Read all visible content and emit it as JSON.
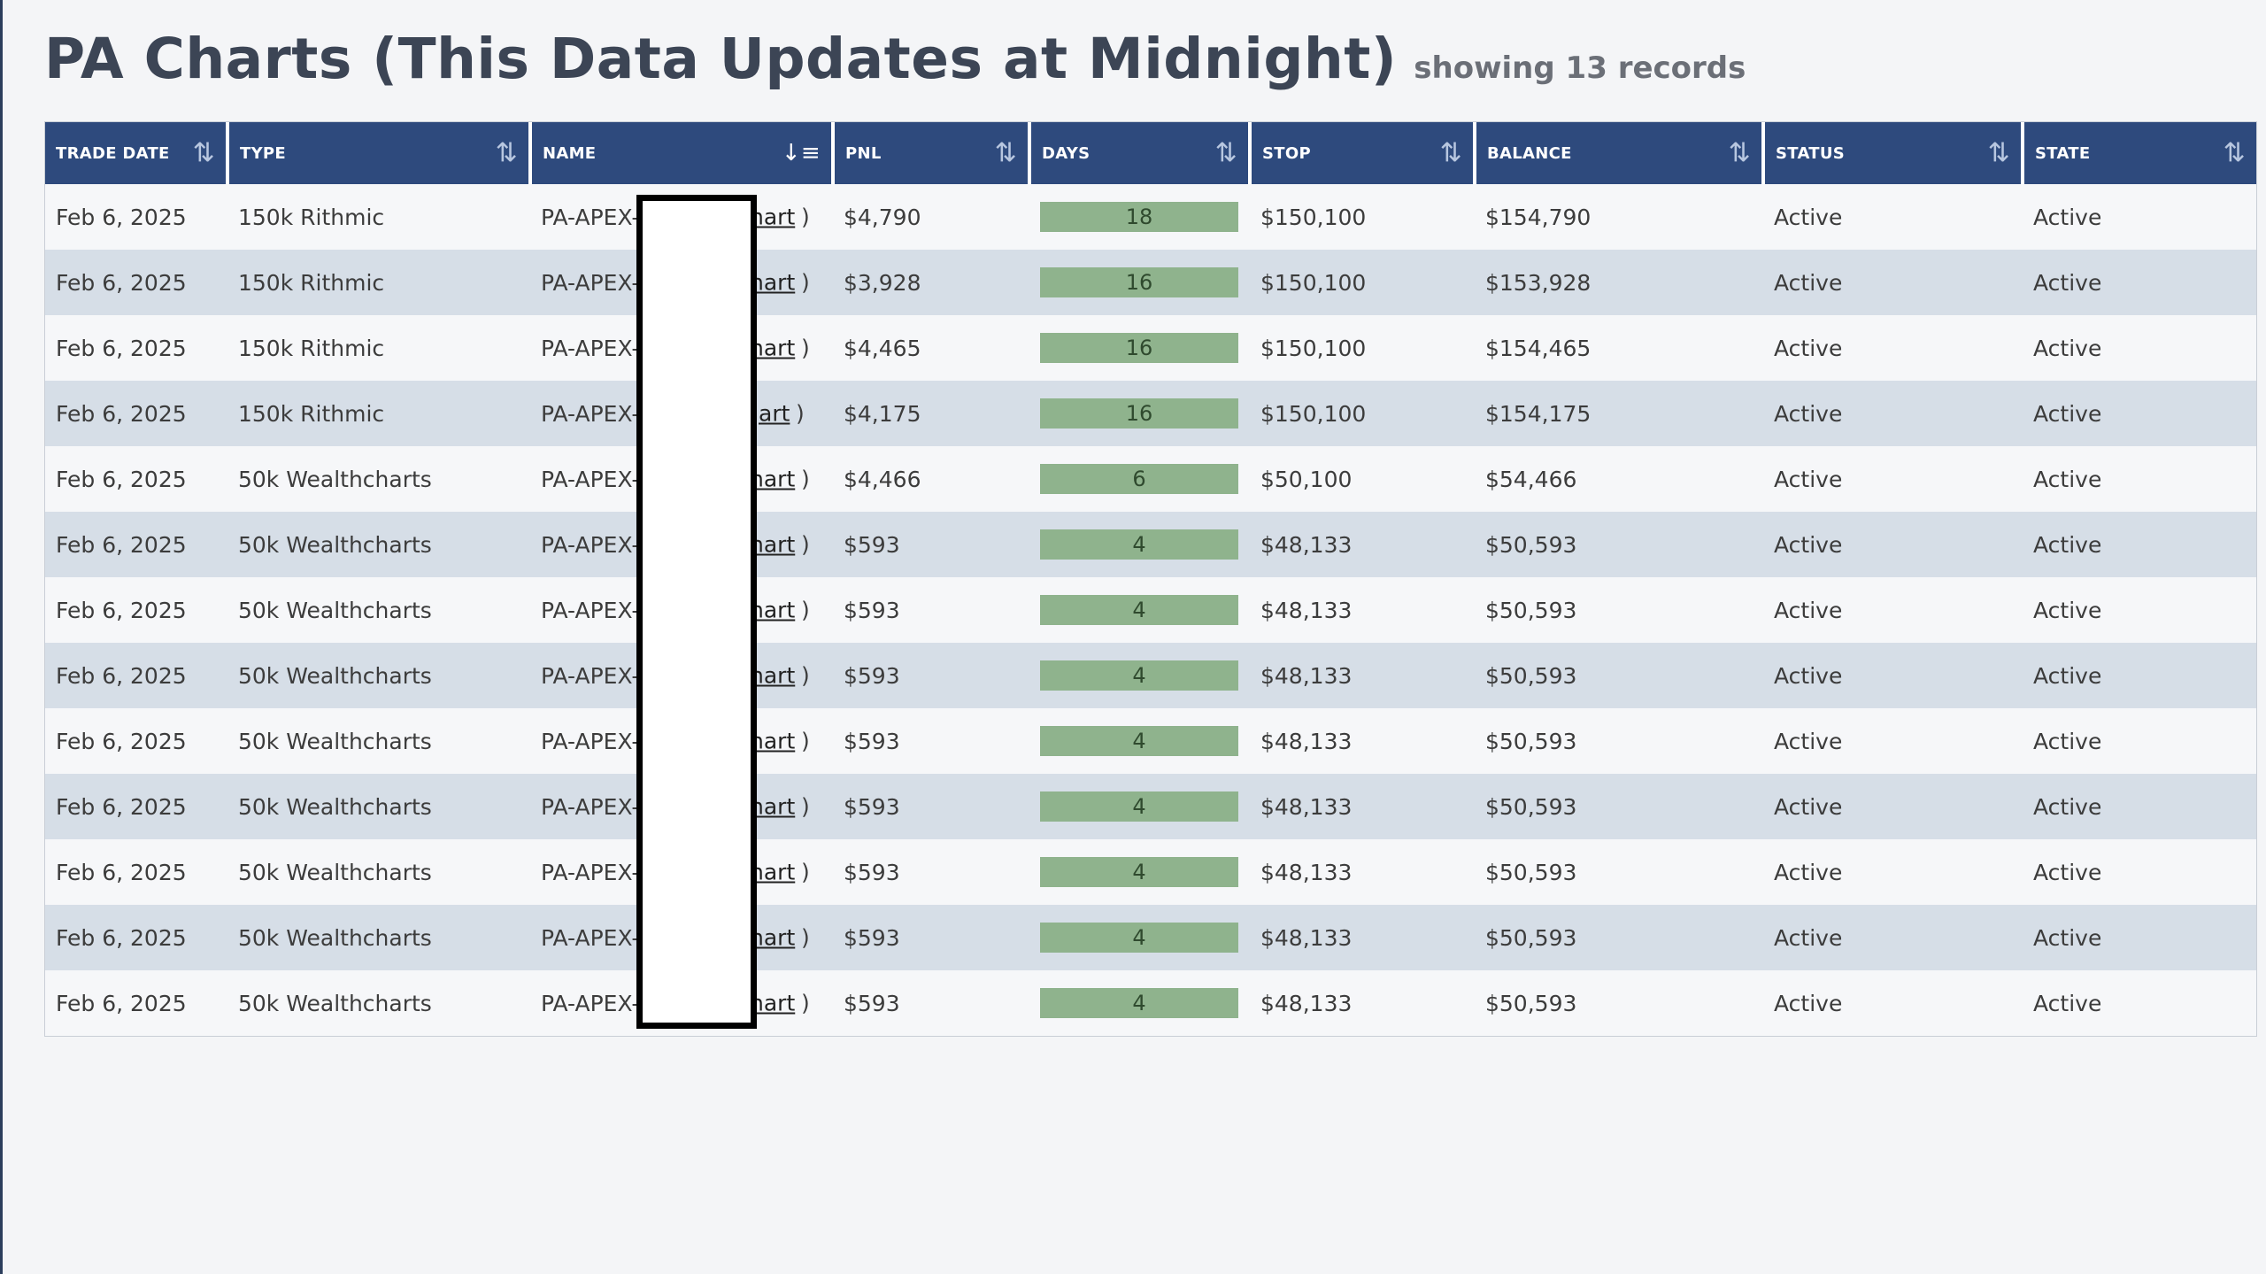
{
  "header": {
    "title": "PA Charts (This Data Updates at Midnight)",
    "subtitle": "showing 13 records"
  },
  "columns": [
    {
      "label": "TRADE DATE",
      "sort_icon": "sort-both-icon"
    },
    {
      "label": "TYPE",
      "sort_icon": "sort-both-icon"
    },
    {
      "label": "NAME",
      "sort_icon": "sort-descending-icon"
    },
    {
      "label": "PNL",
      "sort_icon": "sort-both-icon"
    },
    {
      "label": "DAYS",
      "sort_icon": "sort-both-icon"
    },
    {
      "label": "STOP",
      "sort_icon": "sort-both-icon"
    },
    {
      "label": "BALANCE",
      "sort_icon": "sort-both-icon"
    },
    {
      "label": "STATUS",
      "sort_icon": "sort-both-icon"
    },
    {
      "label": "STATE",
      "sort_icon": "sort-both-icon"
    }
  ],
  "colors": {
    "header_bg": "#2e4a7d",
    "alt_row_bg": "#d6dee7",
    "days_bar": "#8fb38d"
  },
  "rows": [
    {
      "date": "Feb 6, 2025",
      "type": "150k Rithmic",
      "name": "PA-APEX-",
      "link": "hart",
      "paren": ")",
      "pnl": "$4,790",
      "days": "18",
      "stop": "$150,100",
      "balance": "$154,790",
      "status": "Active",
      "state": "Active"
    },
    {
      "date": "Feb 6, 2025",
      "type": "150k Rithmic",
      "name": "PA-APEX-",
      "link": "hart",
      "paren": ")",
      "pnl": "$3,928",
      "days": "16",
      "stop": "$150,100",
      "balance": "$153,928",
      "status": "Active",
      "state": "Active"
    },
    {
      "date": "Feb 6, 2025",
      "type": "150k Rithmic",
      "name": "PA-APEX-",
      "link": "hart",
      "paren": ")",
      "pnl": "$4,465",
      "days": "16",
      "stop": "$150,100",
      "balance": "$154,465",
      "status": "Active",
      "state": "Active"
    },
    {
      "date": "Feb 6, 2025",
      "type": "150k Rithmic",
      "name": "PA-APEX-",
      "link": "art",
      "paren": ")",
      "pnl": "$4,175",
      "days": "16",
      "stop": "$150,100",
      "balance": "$154,175",
      "status": "Active",
      "state": "Active"
    },
    {
      "date": "Feb 6, 2025",
      "type": "50k Wealthcharts",
      "name": "PA-APEX-",
      "link": "hart",
      "paren": ")",
      "pnl": "$4,466",
      "days": "6",
      "stop": "$50,100",
      "balance": "$54,466",
      "status": "Active",
      "state": "Active"
    },
    {
      "date": "Feb 6, 2025",
      "type": "50k Wealthcharts",
      "name": "PA-APEX-",
      "link": "hart",
      "paren": ")",
      "pnl": "$593",
      "days": "4",
      "stop": "$48,133",
      "balance": "$50,593",
      "status": "Active",
      "state": "Active"
    },
    {
      "date": "Feb 6, 2025",
      "type": "50k Wealthcharts",
      "name": "PA-APEX-",
      "link": "hart",
      "paren": ")",
      "pnl": "$593",
      "days": "4",
      "stop": "$48,133",
      "balance": "$50,593",
      "status": "Active",
      "state": "Active"
    },
    {
      "date": "Feb 6, 2025",
      "type": "50k Wealthcharts",
      "name": "PA-APEX-",
      "link": "hart",
      "paren": ")",
      "pnl": "$593",
      "days": "4",
      "stop": "$48,133",
      "balance": "$50,593",
      "status": "Active",
      "state": "Active"
    },
    {
      "date": "Feb 6, 2025",
      "type": "50k Wealthcharts",
      "name": "PA-APEX-",
      "link": "hart",
      "paren": ")",
      "pnl": "$593",
      "days": "4",
      "stop": "$48,133",
      "balance": "$50,593",
      "status": "Active",
      "state": "Active"
    },
    {
      "date": "Feb 6, 2025",
      "type": "50k Wealthcharts",
      "name": "PA-APEX-",
      "link": "hart",
      "paren": ")",
      "pnl": "$593",
      "days": "4",
      "stop": "$48,133",
      "balance": "$50,593",
      "status": "Active",
      "state": "Active"
    },
    {
      "date": "Feb 6, 2025",
      "type": "50k Wealthcharts",
      "name": "PA-APEX-",
      "link": "hart",
      "paren": ")",
      "pnl": "$593",
      "days": "4",
      "stop": "$48,133",
      "balance": "$50,593",
      "status": "Active",
      "state": "Active"
    },
    {
      "date": "Feb 6, 2025",
      "type": "50k Wealthcharts",
      "name": "PA-APEX-",
      "link": "hart",
      "paren": ")",
      "pnl": "$593",
      "days": "4",
      "stop": "$48,133",
      "balance": "$50,593",
      "status": "Active",
      "state": "Active"
    },
    {
      "date": "Feb 6, 2025",
      "type": "50k Wealthcharts",
      "name": "PA-APEX-",
      "link": "hart",
      "paren": ")",
      "pnl": "$593",
      "days": "4",
      "stop": "$48,133",
      "balance": "$50,593",
      "status": "Active",
      "state": "Active"
    }
  ]
}
